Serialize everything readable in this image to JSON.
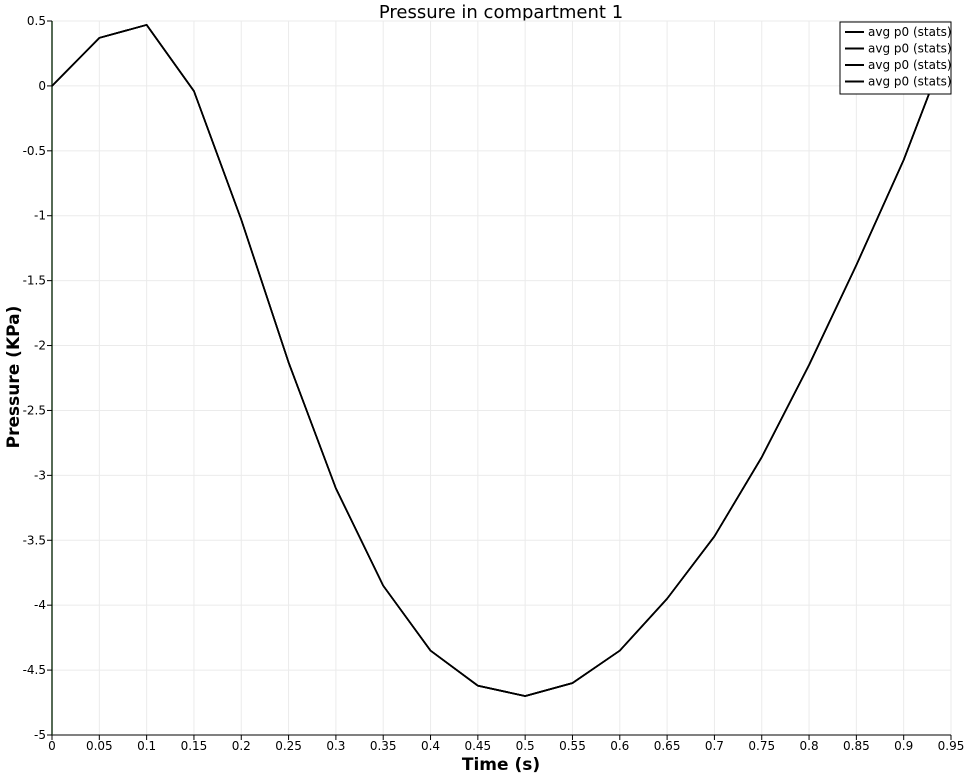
{
  "chart_data": {
    "type": "line",
    "title": "Pressure in compartment 1",
    "xlabel": "Time (s)",
    "ylabel": "Pressure (KPa)",
    "xlim": [
      0,
      0.95
    ],
    "ylim": [
      -5,
      0.5
    ],
    "x_ticks": [
      0,
      0.05,
      0.1,
      0.15,
      0.2,
      0.25,
      0.3,
      0.35,
      0.4,
      0.45,
      0.5,
      0.55,
      0.6,
      0.65,
      0.7,
      0.75,
      0.8,
      0.85,
      0.9,
      0.95
    ],
    "x_tick_labels": [
      "0",
      "0.05",
      "0.1",
      "0.15",
      "0.2",
      "0.25",
      "0.3",
      "0.35",
      "0.4",
      "0.45",
      "0.5",
      "0.55",
      "0.6",
      "0.65",
      "0.7",
      "0.75",
      "0.8",
      "0.85",
      "0.9",
      "0.95"
    ],
    "y_ticks": [
      0.5,
      0,
      -0.5,
      -1,
      -1.5,
      -2,
      -2.5,
      -3,
      -3.5,
      -4,
      -4.5,
      -5
    ],
    "y_tick_labels": [
      "0.5",
      "0",
      "-0.5",
      "-1",
      "-1.5",
      "-2",
      "-2.5",
      "-3",
      "-3.5",
      "-4",
      "-4.5",
      "-5"
    ],
    "grid": true,
    "legend_position": "top-right",
    "x": [
      0,
      0.05,
      0.1,
      0.15,
      0.2,
      0.25,
      0.3,
      0.35,
      0.4,
      0.45,
      0.5,
      0.55,
      0.6,
      0.65,
      0.7,
      0.75,
      0.8,
      0.85,
      0.9,
      0.93
    ],
    "series": [
      {
        "name": "avg p0 (stats)",
        "color": "#000000",
        "values": [
          0,
          0.37,
          0.47,
          -0.04,
          -1.03,
          -2.13,
          -3.1,
          -3.85,
          -4.35,
          -4.62,
          -4.7,
          -4.6,
          -4.35,
          -3.95,
          -3.47,
          -2.86,
          -2.15,
          -1.38,
          -0.57,
          0
        ]
      },
      {
        "name": "avg p0 (stats)",
        "color": "#000000",
        "values": [
          0,
          0.37,
          0.47,
          -0.04,
          -1.03,
          -2.13,
          -3.1,
          -3.85,
          -4.35,
          -4.62,
          -4.7,
          -4.6,
          -4.35,
          -3.95,
          -3.47,
          -2.86,
          -2.15,
          -1.38,
          -0.57,
          0
        ]
      },
      {
        "name": "avg p0 (stats)",
        "color": "#000000",
        "values": [
          0,
          0.37,
          0.47,
          -0.04,
          -1.03,
          -2.13,
          -3.1,
          -3.85,
          -4.35,
          -4.62,
          -4.7,
          -4.6,
          -4.35,
          -3.95,
          -3.47,
          -2.86,
          -2.15,
          -1.38,
          -0.57,
          0
        ]
      },
      {
        "name": "avg p0 (stats)",
        "color": "#000000",
        "values": [
          0,
          0.37,
          0.47,
          -0.04,
          -1.03,
          -2.13,
          -3.1,
          -3.85,
          -4.35,
          -4.62,
          -4.7,
          -4.6,
          -4.35,
          -3.95,
          -3.47,
          -2.86,
          -2.15,
          -1.38,
          -0.57,
          0
        ]
      }
    ],
    "colors": {
      "grid": "#ebebeb",
      "axis": "#000000",
      "left_axis": "#1e3a1e",
      "legend_border": "#000000"
    }
  }
}
